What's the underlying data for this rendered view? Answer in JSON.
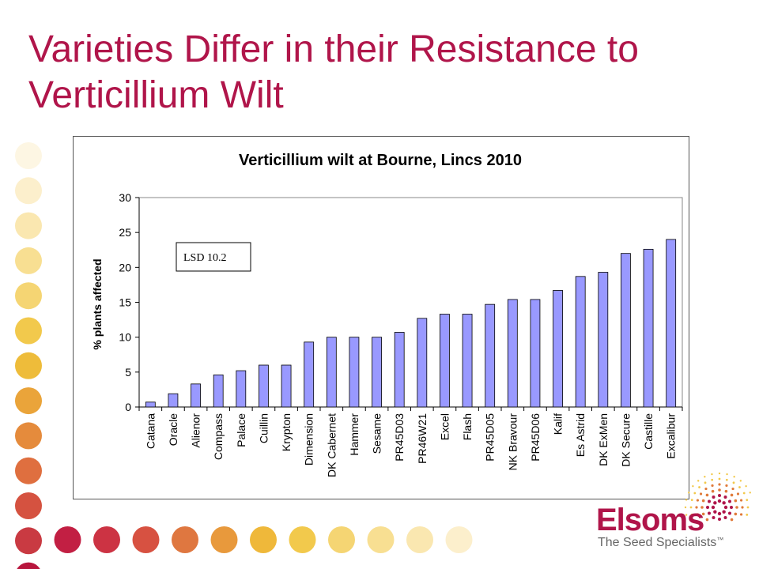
{
  "slide": {
    "title": "Varieties  Differ in their Resistance to Verticillium  Wilt"
  },
  "decor": {
    "dot_colors_vertical": [
      "#fdf6e3",
      "#fcefcc",
      "#fae7b0",
      "#f8df92",
      "#f5d573",
      "#f2c94c",
      "#eebc3a",
      "#eaa43a",
      "#e58b3c",
      "#df6f3f",
      "#d55240",
      "#c93a42",
      "#b8163e"
    ],
    "dot_colors_horizontal": [
      "#b8163e",
      "#c21f43",
      "#cc3343",
      "#d75141",
      "#df7740",
      "#e8993c",
      "#efb83a",
      "#f2c94c",
      "#f5d573",
      "#f8df92",
      "#fae7b0",
      "#fcefcc"
    ]
  },
  "logo": {
    "name": "Elsoms",
    "tagline": "The Seed Specialists",
    "trademark": "™",
    "color": "#b0154a"
  },
  "chart_data": {
    "type": "bar",
    "title": "Verticillium wilt at Bourne, Lincs 2010",
    "xlabel": "",
    "ylabel": "% plants affected",
    "ylim": [
      0,
      30
    ],
    "yticks": [
      0,
      5,
      10,
      15,
      20,
      25,
      30
    ],
    "grid": false,
    "bar_color": "#9999ff",
    "annotation": "LSD 10.2",
    "categories": [
      "Catana",
      "Oracle",
      "Alienor",
      "Compass",
      "Palace",
      "Cuillin",
      "Krypton",
      "Dimension",
      "DK Cabernet",
      "Hammer",
      "Sesame",
      "PR45D03",
      "PR46W21",
      "Excel",
      "Flash",
      "PR45D05",
      "NK Bravour",
      "PR45D06",
      "Kalif",
      "Es Astrid",
      "DK ExMen",
      "DK Secure",
      "Castille",
      "Excalibur"
    ],
    "values": [
      0.7,
      1.9,
      3.3,
      4.6,
      5.2,
      6.0,
      6.0,
      9.3,
      10.0,
      10.0,
      10.0,
      10.7,
      12.7,
      13.3,
      13.3,
      14.7,
      15.4,
      15.4,
      16.7,
      18.7,
      19.3,
      22.0,
      22.6,
      24.0
    ]
  }
}
